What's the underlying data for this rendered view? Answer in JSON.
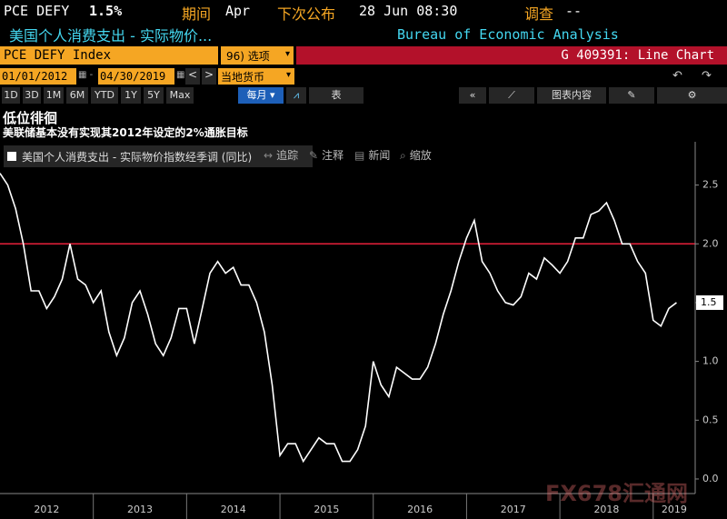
{
  "header": {
    "ticker": "PCE DEFY",
    "value": "1.5%",
    "period_label": "期间",
    "period": "Apr",
    "next_label": "下次公布",
    "next": "28 Jun 08:30",
    "survey_label": "调查",
    "survey": "--",
    "name": "美国个人消费支出 - 实际物价...",
    "source": "Bureau of Economic Analysis"
  },
  "toolbar": {
    "security": "PCE DEFY Index",
    "options": "96) 选项",
    "function": "G 409391: Line Chart",
    "start": "01/01/2012",
    "end": "04/30/2019",
    "currency": "当地货币",
    "periods": [
      "1D",
      "3D",
      "1M",
      "6M",
      "YTD",
      "1Y",
      "5Y",
      "Max"
    ],
    "frequency": "每月",
    "table": "表",
    "contents": "图表内容"
  },
  "chart_tools": [
    "追踪",
    "注释",
    "新闻",
    "缩放"
  ],
  "watermark": "FX678汇通网",
  "chart_data": {
    "type": "line",
    "title": "低位徘徊",
    "subtitle": "美联储基本没有实现其2012年设定的2%通胀目标",
    "x": [
      2012,
      2012.083,
      2012.167,
      2012.25,
      2012.333,
      2012.417,
      2012.5,
      2012.583,
      2012.667,
      2012.75,
      2012.833,
      2012.917,
      2013,
      2013.083,
      2013.167,
      2013.25,
      2013.333,
      2013.417,
      2013.5,
      2013.583,
      2013.667,
      2013.75,
      2013.833,
      2013.917,
      2014,
      2014.083,
      2014.167,
      2014.25,
      2014.333,
      2014.417,
      2014.5,
      2014.583,
      2014.667,
      2014.75,
      2014.833,
      2014.917,
      2015,
      2015.083,
      2015.167,
      2015.25,
      2015.333,
      2015.417,
      2015.5,
      2015.583,
      2015.667,
      2015.75,
      2015.833,
      2015.917,
      2016,
      2016.083,
      2016.167,
      2016.25,
      2016.333,
      2016.417,
      2016.5,
      2016.583,
      2016.667,
      2016.75,
      2016.833,
      2016.917,
      2017,
      2017.083,
      2017.167,
      2017.25,
      2017.333,
      2017.417,
      2017.5,
      2017.583,
      2017.667,
      2017.75,
      2017.833,
      2017.917,
      2018,
      2018.083,
      2018.167,
      2018.25,
      2018.333,
      2018.417,
      2018.5,
      2018.583,
      2018.667,
      2018.75,
      2018.833,
      2018.917,
      2019,
      2019.083,
      2019.167,
      2019.25
    ],
    "series": [
      {
        "name": "美国个人消费支出 - 实际物价指数经季调 (同比)",
        "color": "#ffffff",
        "values": [
          2.6,
          2.5,
          2.3,
          2.0,
          1.6,
          1.6,
          1.45,
          1.55,
          1.7,
          2.0,
          1.7,
          1.65,
          1.5,
          1.6,
          1.25,
          1.05,
          1.2,
          1.5,
          1.6,
          1.4,
          1.15,
          1.05,
          1.2,
          1.45,
          1.45,
          1.15,
          1.45,
          1.75,
          1.85,
          1.75,
          1.8,
          1.65,
          1.65,
          1.5,
          1.25,
          0.8,
          0.2,
          0.3,
          0.3,
          0.15,
          0.25,
          0.35,
          0.3,
          0.3,
          0.15,
          0.15,
          0.25,
          0.45,
          1.0,
          0.8,
          0.7,
          0.95,
          0.9,
          0.85,
          0.85,
          0.95,
          1.15,
          1.4,
          1.6,
          1.85,
          2.05,
          2.2,
          1.85,
          1.75,
          1.6,
          1.5,
          1.48,
          1.55,
          1.75,
          1.7,
          1.88,
          1.82,
          1.75,
          1.85,
          2.05,
          2.05,
          2.25,
          2.28,
          2.35,
          2.2,
          2.0,
          2.0,
          1.85,
          1.75,
          1.35,
          1.3,
          1.45,
          1.5
        ]
      }
    ],
    "xlim": [
      2012,
      2019.45
    ],
    "xticks": [
      2012,
      2013,
      2014,
      2015,
      2016,
      2017,
      2018,
      2019
    ],
    "ylim": [
      -0.124,
      2.868
    ],
    "yticks": [
      {
        "value": 0,
        "label": "0.0"
      },
      0.5,
      {
        "value": 1,
        "label": "1.0"
      },
      1.5,
      {
        "value": 2,
        "label": "2.0"
      },
      2.5
    ],
    "reference_line": {
      "value": 2,
      "color": "#e8203a"
    }
  }
}
